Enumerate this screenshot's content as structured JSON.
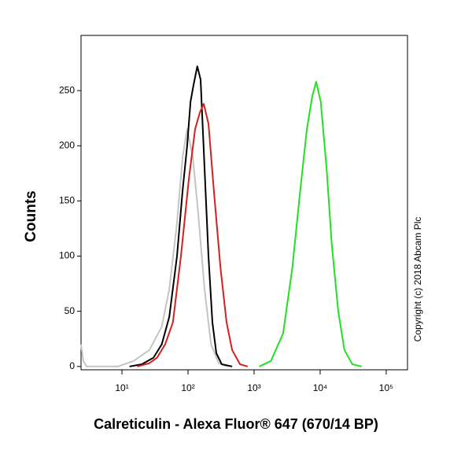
{
  "chart_data": {
    "type": "line",
    "y_label": "Counts",
    "x_label": "Calreticulin - Alexa Fluor® 647 (670/14 BP)",
    "copyright": "Copyright (c) 2018 Abcam Plc",
    "log_x": true,
    "xlim": [
      2.4,
      210000
    ],
    "ylim": [
      -3,
      300
    ],
    "xticks": [
      {
        "value": 10,
        "label": "10¹"
      },
      {
        "value": 100,
        "label": "10²"
      },
      {
        "value": 1000,
        "label": "10³"
      },
      {
        "value": 10000,
        "label": "10⁴"
      },
      {
        "value": 100000,
        "label": "10⁵"
      }
    ],
    "yticks": [
      0,
      50,
      100,
      150,
      200,
      250
    ],
    "series": [
      {
        "color": "#c4c4c4",
        "x": [
          2.4,
          2.6,
          2.9,
          8.7,
          15,
          26,
          40,
          52,
          68,
          83,
          97,
          118,
          142,
          178,
          223,
          291,
          405
        ],
        "values": [
          20,
          5,
          0,
          0,
          5,
          15,
          36,
          70,
          130,
          190,
          215,
          190,
          140,
          70,
          20,
          3,
          0
        ]
      },
      {
        "color": "#000000",
        "x": [
          13,
          20,
          30,
          40,
          52,
          68,
          83,
          97,
          109,
          121,
          138,
          155,
          178,
          204,
          234,
          268,
          324,
          465
        ],
        "values": [
          0,
          2,
          8,
          20,
          45,
          100,
          160,
          200,
          240,
          255,
          272,
          260,
          180,
          100,
          40,
          12,
          2,
          0
        ]
      },
      {
        "color": "#d42020",
        "x": [
          17,
          26,
          34,
          45,
          59,
          78,
          103,
          128,
          151,
          173,
          204,
          246,
          309,
          383,
          465,
          612,
          800
        ],
        "values": [
          0,
          3,
          8,
          20,
          40,
          100,
          170,
          215,
          230,
          238,
          220,
          160,
          90,
          40,
          15,
          2,
          0
        ]
      },
      {
        "color": "#22e022",
        "x": [
          1200,
          1800,
          2750,
          3800,
          5000,
          6300,
          7600,
          8700,
          10200,
          12500,
          15000,
          18800,
          23300,
          30700,
          42700
        ],
        "values": [
          0,
          5,
          30,
          90,
          160,
          215,
          245,
          258,
          240,
          180,
          110,
          50,
          15,
          2,
          0
        ]
      }
    ]
  }
}
